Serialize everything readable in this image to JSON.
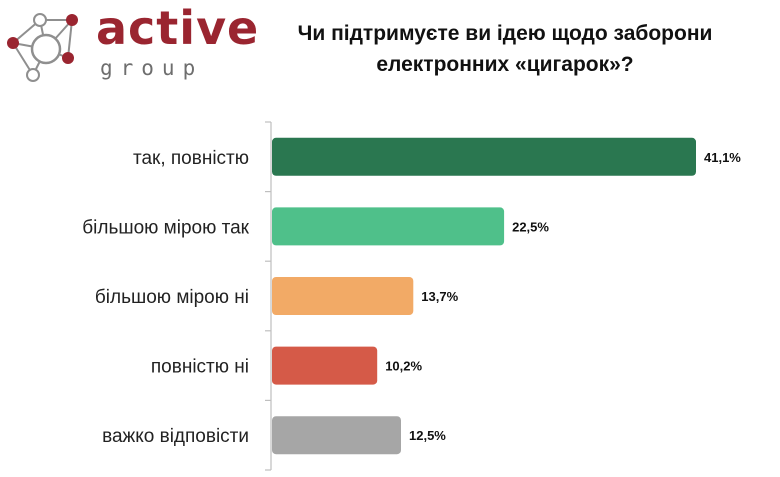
{
  "brand": {
    "name": "active",
    "sub": "group",
    "colors": {
      "red": "#9a2530",
      "gray": "#6e6e6e"
    }
  },
  "chart_data": {
    "type": "bar",
    "orientation": "horizontal",
    "title": "Чи підтримуєте ви ідею щодо заборони електронних «цигарок»?",
    "title_lines": [
      "Чи підтримуєте ви ідею щодо заборони",
      "електронних «цигарок»?"
    ],
    "categories": [
      "так, повністю",
      "більшою мірою так",
      "більшою мірою ні",
      "повністю ні",
      "важко відповісти"
    ],
    "values": [
      41.1,
      22.5,
      13.7,
      10.2,
      12.5
    ],
    "value_labels": [
      "41,1%",
      "22,5%",
      "13,7%",
      "10,2%",
      "12,5%"
    ],
    "colors": [
      "#2a7750",
      "#4fc08a",
      "#f2aa66",
      "#d55a48",
      "#a6a6a6"
    ],
    "xlim": [
      0,
      41.1
    ],
    "grid": false,
    "legend": "none"
  }
}
